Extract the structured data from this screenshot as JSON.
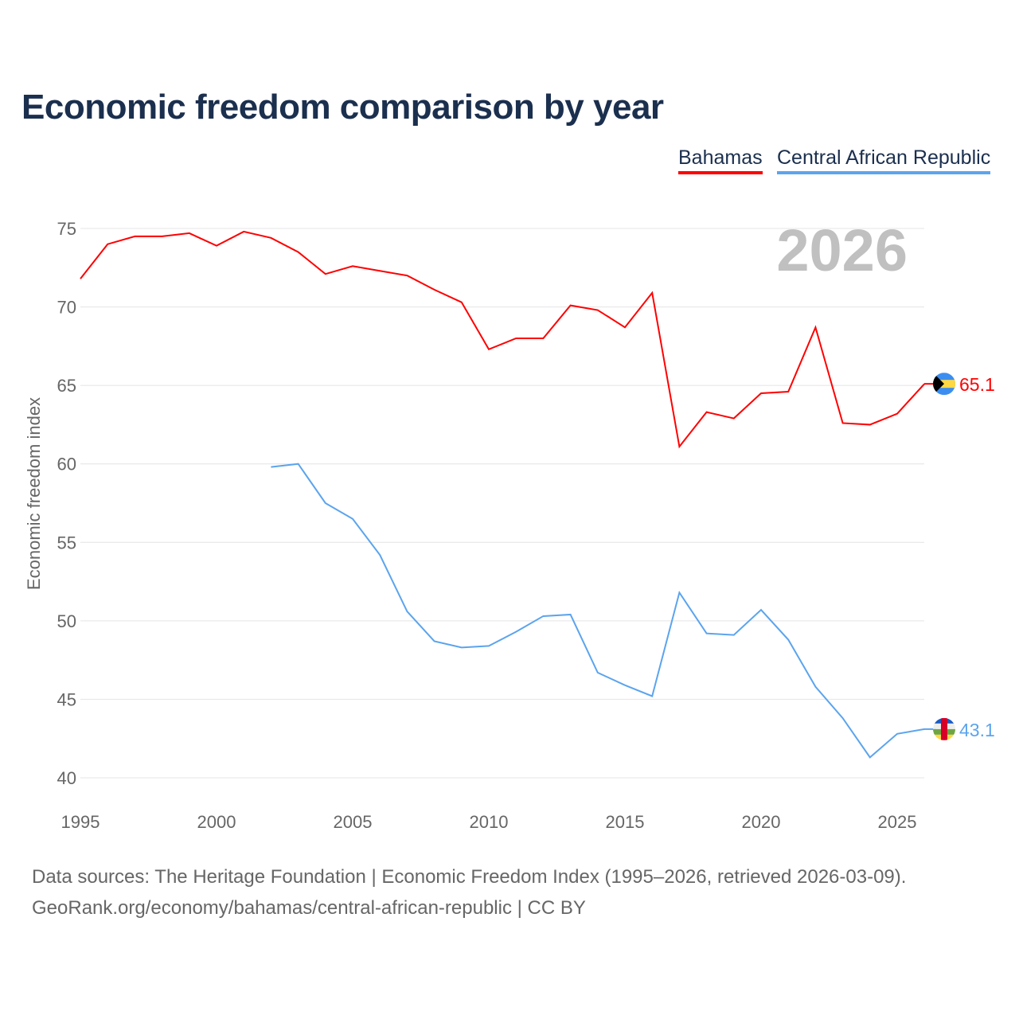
{
  "chart_data": {
    "type": "line",
    "title": "Economic freedom comparison by year",
    "xlabel": "",
    "ylabel": "Economic freedom index",
    "xlim": [
      1995,
      2026
    ],
    "ylim": [
      40,
      75
    ],
    "yticks": [
      40,
      45,
      50,
      55,
      60,
      65,
      70,
      75
    ],
    "xticks": [
      1995,
      2000,
      2005,
      2010,
      2015,
      2020,
      2025
    ],
    "grid": true,
    "legend_position": "top-right",
    "current_year_label": "2026",
    "series": [
      {
        "name": "Bahamas",
        "color": "#ff0000",
        "end_label": "65.1",
        "flag_icon": "bahamas-flag",
        "x": [
          1995,
          1996,
          1997,
          1998,
          1999,
          2000,
          2001,
          2002,
          2003,
          2004,
          2005,
          2006,
          2007,
          2008,
          2009,
          2010,
          2011,
          2012,
          2013,
          2014,
          2015,
          2016,
          2017,
          2018,
          2019,
          2020,
          2021,
          2022,
          2023,
          2024,
          2025,
          2026
        ],
        "values": [
          71.8,
          74.0,
          74.5,
          74.5,
          74.7,
          73.9,
          74.8,
          74.4,
          73.5,
          72.1,
          72.6,
          72.3,
          72.0,
          71.1,
          70.3,
          67.3,
          68.0,
          68.0,
          70.1,
          69.8,
          68.7,
          70.9,
          61.1,
          63.3,
          62.9,
          64.5,
          64.6,
          68.7,
          62.6,
          62.5,
          63.2,
          65.1
        ]
      },
      {
        "name": "Central African Republic",
        "color": "#5ba4ee",
        "end_label": "43.1",
        "flag_icon": "central-african-republic-flag",
        "x": [
          2002,
          2003,
          2004,
          2005,
          2006,
          2007,
          2008,
          2009,
          2010,
          2011,
          2012,
          2013,
          2014,
          2015,
          2016,
          2017,
          2018,
          2019,
          2020,
          2021,
          2022,
          2023,
          2024,
          2025,
          2026
        ],
        "values": [
          59.8,
          60.0,
          57.5,
          56.5,
          54.2,
          50.6,
          48.7,
          48.3,
          48.4,
          49.3,
          50.3,
          50.4,
          46.7,
          45.9,
          45.2,
          51.8,
          49.2,
          49.1,
          50.7,
          48.8,
          45.8,
          43.8,
          41.3,
          42.8,
          43.1
        ]
      }
    ]
  },
  "footer": {
    "line1": "Data sources: The Heritage Foundation | Economic Freedom Index (1995–2026, retrieved 2026-03-09).",
    "line2": "GeoRank.org/economy/bahamas/central-african-republic | CC BY"
  }
}
